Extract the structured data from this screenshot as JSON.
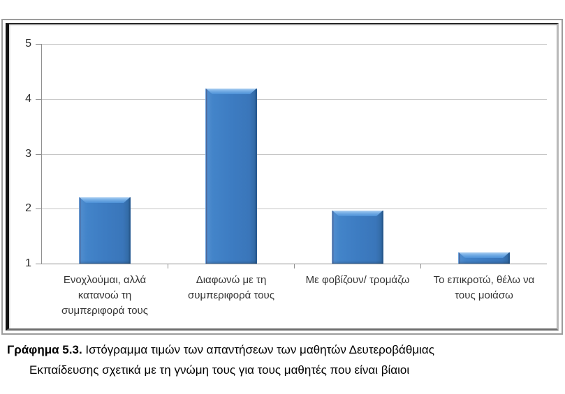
{
  "chart_data": {
    "type": "bar",
    "categories": [
      "Ενοχλούμαι, αλλά κατανοώ τη συμπεριφορά τους",
      "Διαφωνώ με τη συμπεριφορά τους",
      "Με φοβίζουν/ τρομάζω",
      "Το επικροτώ, θέλω να τους μοιάσω"
    ],
    "values": [
      2.2,
      4.19,
      1.97,
      1.2
    ],
    "y_ticks": [
      5,
      4,
      3,
      2,
      1
    ],
    "ylim": [
      1,
      5
    ],
    "title": "",
    "xlabel": "",
    "ylabel": "",
    "grid": true,
    "legend": "none",
    "colors": {
      "bar_fill": "#3D7CC2",
      "bar_bevel_highlight": "#A9CEF1",
      "bar_edge_dark": "#2A5D95",
      "gridline": "#C6C6C6",
      "axis": "#8F8F8F",
      "tick_label": "#2E2E2E",
      "category_label": "#333333"
    }
  },
  "caption": {
    "label": "Γράφημα 5.3.",
    "line1": "Ιστόγραμμα τιμών των απαντήσεων των μαθητών Δευτεροβάθμιας",
    "line2": "Εκπαίδευσης σχετικά με τη γνώμη τους για τους μαθητές που είναι βίαιοι"
  }
}
